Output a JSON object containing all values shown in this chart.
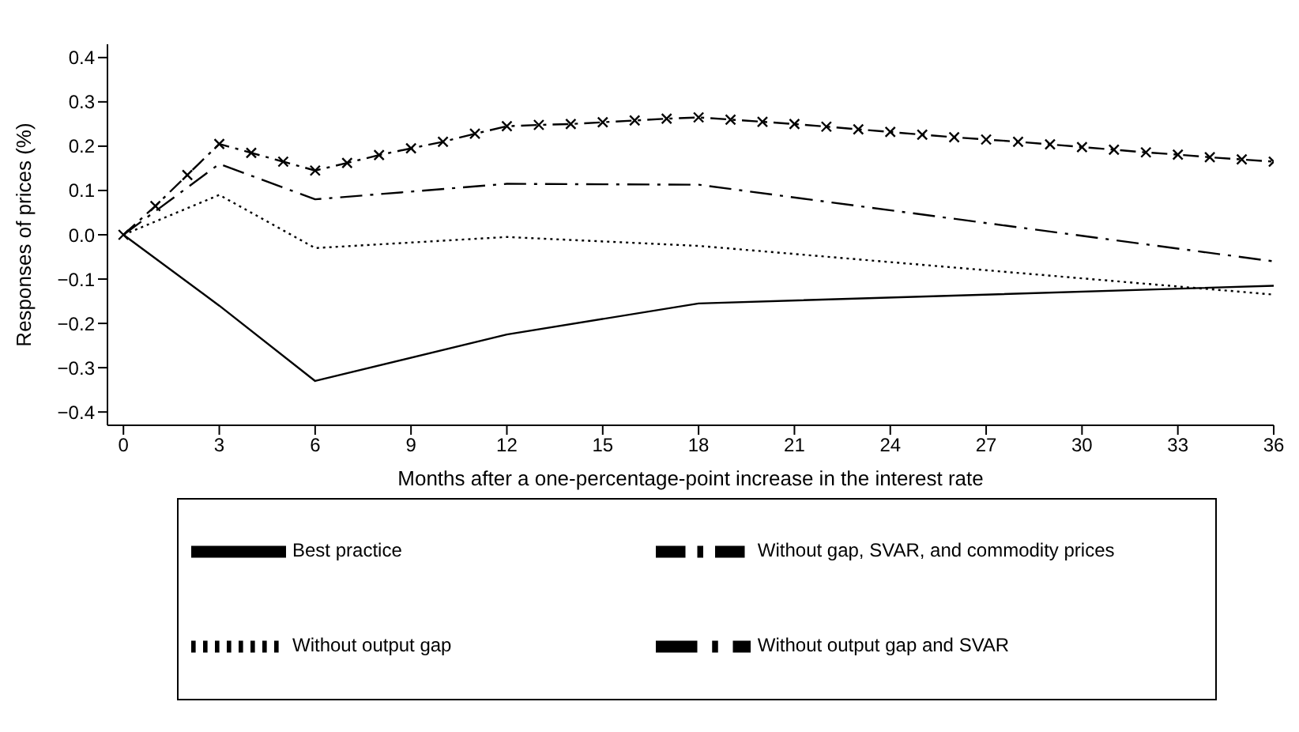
{
  "chart_data": {
    "type": "line",
    "xlabel": "Months after a one-percentage-point increase in the interest rate",
    "ylabel": "Responses of prices (%)",
    "xlim": [
      -0.5,
      36
    ],
    "xticks": [
      0,
      3,
      6,
      9,
      12,
      15,
      18,
      21,
      24,
      27,
      30,
      33,
      36
    ],
    "ylim": [
      -0.43,
      0.43
    ],
    "yticks": [
      {
        "value": 0.4,
        "label": "0.4"
      },
      {
        "value": 0.3,
        "label": "0.3"
      },
      {
        "value": 0.2,
        "label": "0.2"
      },
      {
        "value": 0.1,
        "label": "0.1"
      },
      {
        "value": 0,
        "label": "0.0"
      },
      {
        "value": -0.1,
        "label": "−0.1"
      },
      {
        "value": -0.2,
        "label": "−0.2"
      },
      {
        "value": -0.3,
        "label": "−0.3"
      },
      {
        "value": -0.4,
        "label": "−0.4"
      }
    ],
    "grid": false,
    "legend": "bottom",
    "series": [
      {
        "name": "Best practice",
        "color": "#000000",
        "line_style": "solid",
        "marker": "none",
        "x": [
          0,
          3,
          6,
          12,
          18,
          36
        ],
        "values": [
          0,
          -0.16,
          -0.33,
          -0.225,
          -0.155,
          -0.115
        ]
      },
      {
        "name": "Without output gap",
        "color": "#000000",
        "line_style": "dotted",
        "marker": "none",
        "x": [
          0,
          3,
          6,
          12,
          18,
          36
        ],
        "values": [
          0,
          0.09,
          -0.03,
          -0.005,
          -0.025,
          -0.135
        ]
      },
      {
        "name": "Without output gap and SVAR",
        "color": "#000000",
        "line_style": "dashed",
        "marker": "none",
        "x": [
          0,
          3,
          6,
          12,
          18,
          36
        ],
        "values": [
          0,
          0.16,
          0.08,
          0.115,
          0.113,
          -0.06
        ]
      },
      {
        "name": "Without gap, SVAR, and commodity prices",
        "color": "#000000",
        "line_style": "dashed",
        "marker": "cross",
        "x": [
          0,
          1,
          2,
          3,
          4,
          5,
          6,
          7,
          8,
          9,
          10,
          11,
          12,
          13,
          14,
          15,
          16,
          17,
          18,
          19,
          20,
          21,
          22,
          23,
          24,
          25,
          26,
          27,
          28,
          29,
          30,
          31,
          32,
          33,
          34,
          35,
          36
        ],
        "values": [
          0,
          0.065,
          0.135,
          0.205,
          0.185,
          0.165,
          0.145,
          0.162,
          0.18,
          0.195,
          0.21,
          0.228,
          0.245,
          0.248,
          0.25,
          0.254,
          0.258,
          0.262,
          0.265,
          0.26,
          0.255,
          0.25,
          0.244,
          0.238,
          0.232,
          0.226,
          0.22,
          0.215,
          0.21,
          0.204,
          0.198,
          0.192,
          0.186,
          0.181,
          0.175,
          0.17,
          0.165
        ]
      }
    ]
  }
}
